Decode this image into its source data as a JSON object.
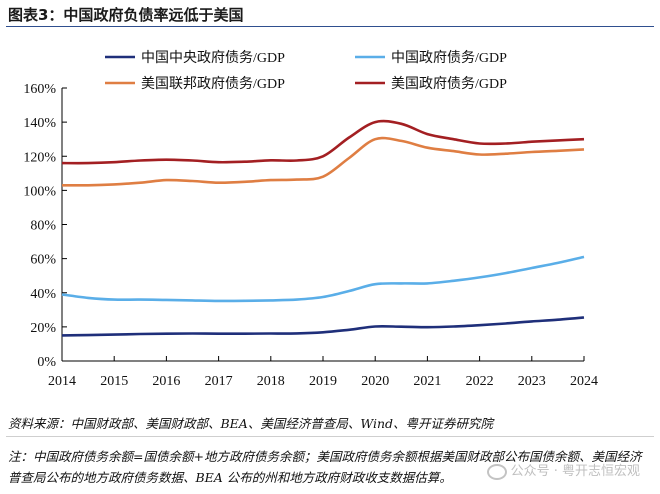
{
  "header": {
    "title": "图表3：中国政府负债率远低于美国"
  },
  "chart_data": {
    "type": "line",
    "x": [
      2014,
      2014.5,
      2015,
      2015.5,
      2016,
      2016.5,
      2017,
      2017.5,
      2018,
      2018.5,
      2019,
      2019.5,
      2020,
      2020.5,
      2021,
      2021.5,
      2022,
      2022.5,
      2023,
      2023.5,
      2024
    ],
    "xticks": [
      "2014",
      "2015",
      "2016",
      "2017",
      "2018",
      "2019",
      "2020",
      "2021",
      "2022",
      "2023",
      "2024"
    ],
    "ylim": [
      0,
      160
    ],
    "yticks": [
      "0%",
      "20%",
      "40%",
      "60%",
      "80%",
      "100%",
      "120%",
      "140%",
      "160%"
    ],
    "series": [
      {
        "name": "中国中央政府债务/GDP",
        "color": "#1f2f7a",
        "values": [
          15,
          15.2,
          15.5,
          15.8,
          16,
          16.1,
          16,
          16,
          16.1,
          16.2,
          16.8,
          18.3,
          20.2,
          20.1,
          19.8,
          20.2,
          21,
          22,
          23.2,
          24.2,
          25.5
        ]
      },
      {
        "name": "中国政府债务/GDP",
        "color": "#5aaee8",
        "values": [
          39,
          37,
          36,
          36,
          35.8,
          35.5,
          35.2,
          35.3,
          35.5,
          36,
          37.5,
          41,
          45,
          45.5,
          45.5,
          47,
          49,
          51.5,
          54.5,
          57.5,
          61
        ]
      },
      {
        "name": "美国联邦政府债务/GDP",
        "color": "#df7e43",
        "values": [
          103,
          103,
          103.5,
          104.5,
          106,
          105.5,
          104.5,
          105,
          106,
          106.3,
          108,
          119,
          130,
          129,
          125,
          123,
          121,
          121.5,
          122.5,
          123.2,
          124
        ]
      },
      {
        "name": "美国政府债务/GDP",
        "color": "#a31f22",
        "values": [
          116,
          116,
          116.5,
          117.5,
          118,
          117.5,
          116.5,
          116.8,
          117.6,
          117.5,
          120,
          131,
          140,
          139,
          133,
          130,
          127.5,
          127.5,
          128.5,
          129.3,
          130
        ]
      }
    ]
  },
  "footer": {
    "source": "资料来源：中国财政部、美国财政部、BEA、美国经济普查局、Wind、粤开证券研究院",
    "note": "注：中国政府债务余额=国债余额+地方政府债务余额；美国政府债务余额根据美国财政部公布国债余额、美国经济普查局公布的地方政府债务数据、BEA 公布的州和地方政府财政收支数据估算。",
    "watermark": "公众号 · 粤开志恒宏观"
  }
}
